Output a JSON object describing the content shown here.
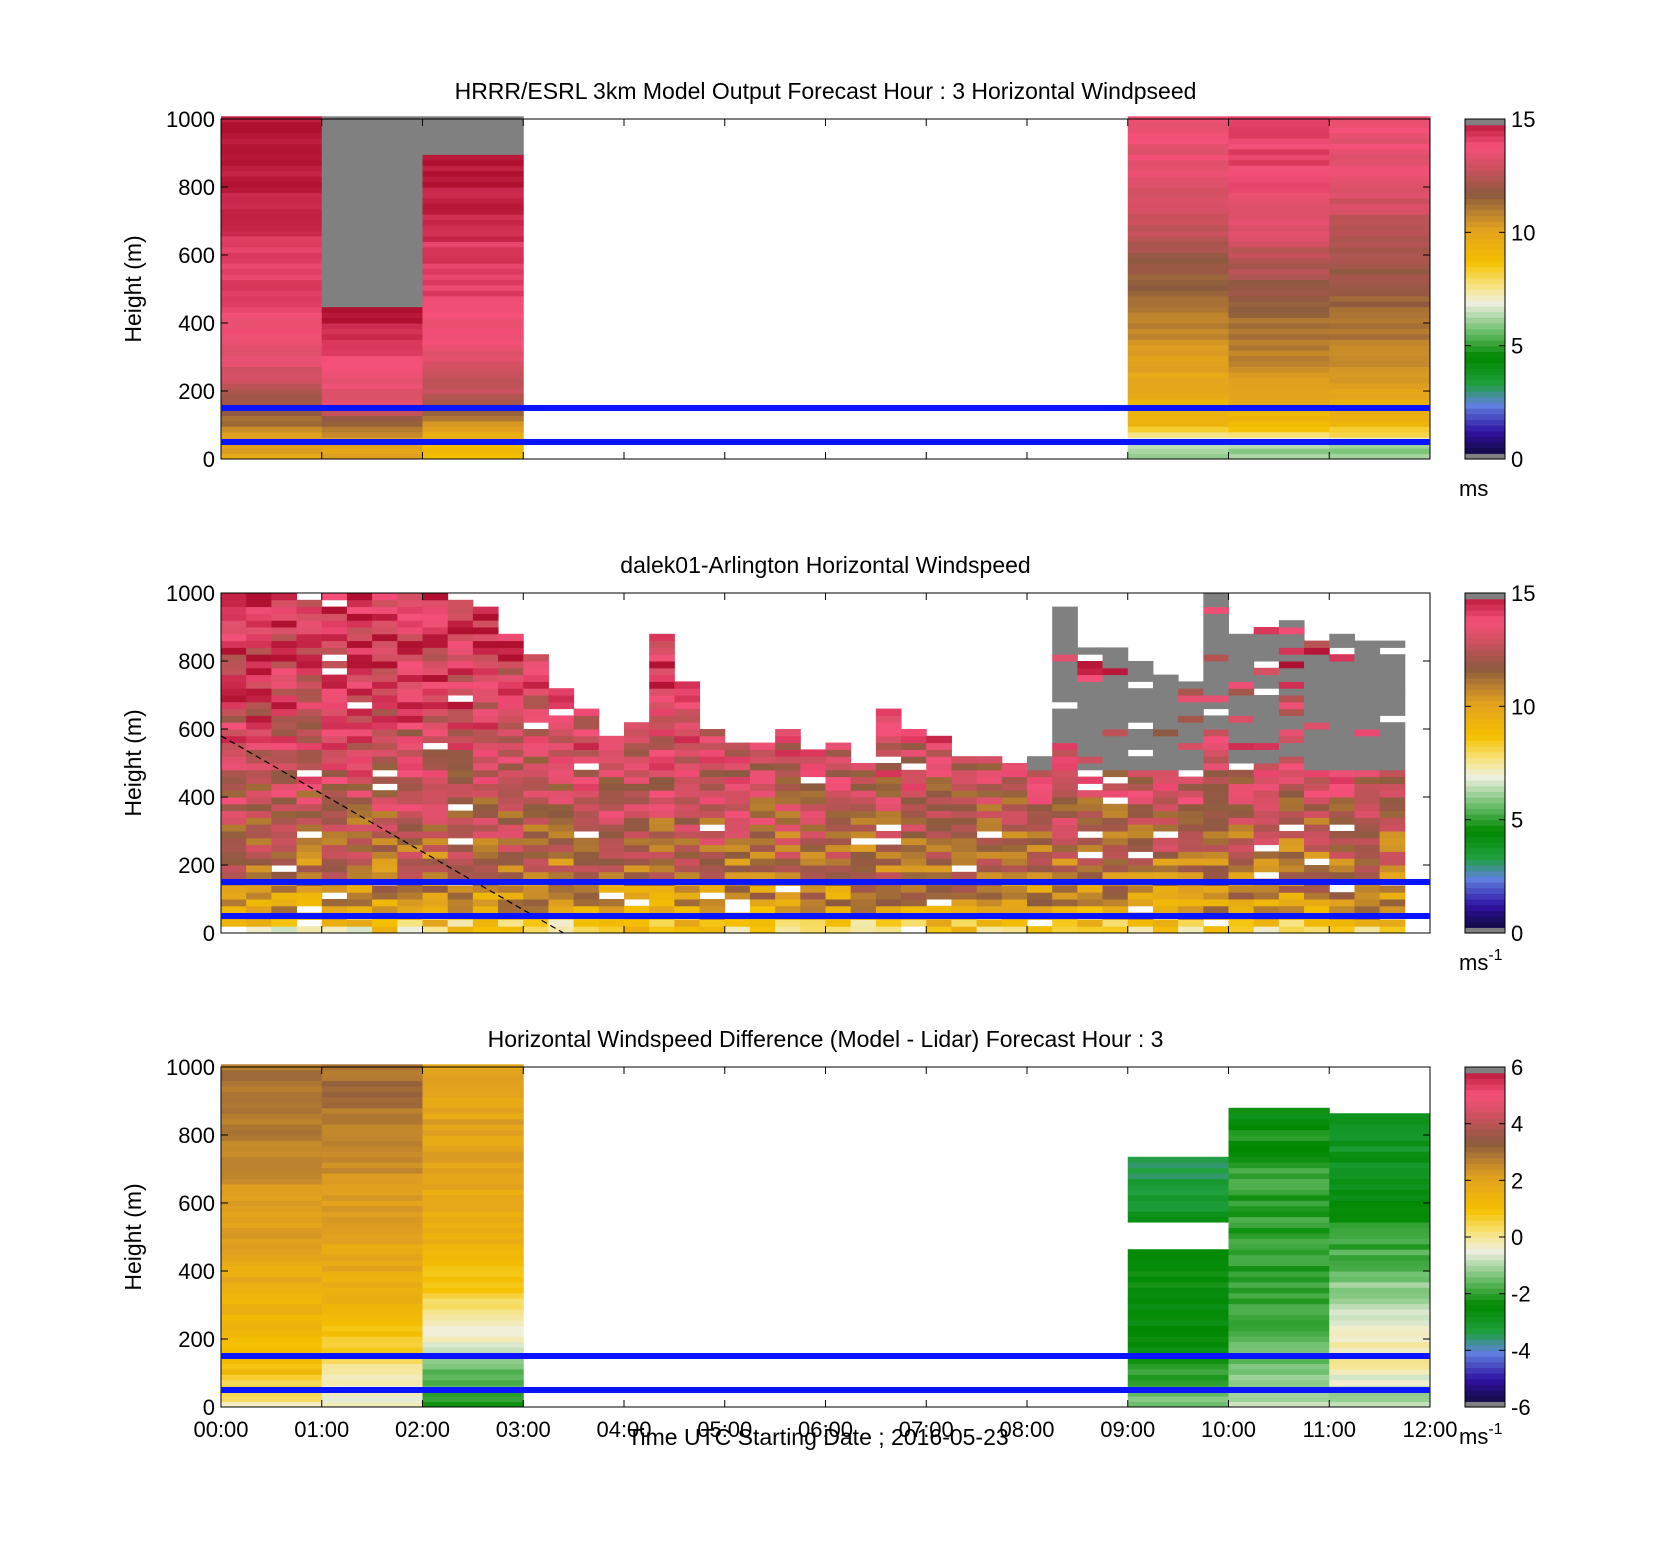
{
  "figure": {
    "xlabel": "Time UTC  Starting Date ; 2016-05-23",
    "xticks": [
      "00:00",
      "01:00",
      "02:00",
      "03:00",
      "04:00",
      "05:00",
      "06:00",
      "07:00",
      "08:00",
      "09:00",
      "10:00",
      "11:00",
      "12:00"
    ]
  },
  "chart_data": [
    {
      "type": "heatmap",
      "title": "HRRR/ESRL 3km Model Output   Forecast Hour : 3 Horizontal Windpseed",
      "ylabel": "Height (m)",
      "xlim": [
        0,
        12
      ],
      "ylim": [
        0,
        1000
      ],
      "yticks": [
        "0",
        "200",
        "400",
        "600",
        "800",
        "1000"
      ],
      "colorbar": {
        "ticks": [
          "0",
          "5",
          "10",
          "15"
        ],
        "range": [
          0,
          15
        ],
        "unit": "ms"
      },
      "reference_lines_m": [
        50,
        150
      ],
      "model_hours_shown": [
        "00:00",
        "01:00",
        "02:00",
        "09:00",
        "10:00",
        "11:00"
      ],
      "representative_columns": [
        {
          "hour": 0,
          "levels_m": [
            50,
            150,
            300,
            500,
            700,
            900
          ],
          "values": [
            10,
            12,
            13.5,
            14,
            14.5,
            15
          ]
        },
        {
          "hour": 1,
          "levels_m": [
            50,
            150,
            300,
            430
          ],
          "values": [
            10,
            13,
            14,
            15
          ],
          "no_data_above_m": 450
        },
        {
          "hour": 2,
          "levels_m": [
            50,
            150,
            300,
            500,
            700,
            850
          ],
          "values": [
            9,
            12,
            13.5,
            14,
            14.5,
            15
          ],
          "no_data_above_m": 900
        },
        {
          "hour": 9,
          "levels_m": [
            30,
            100,
            250,
            450,
            650,
            850
          ],
          "values": [
            6,
            9,
            10,
            11,
            12.5,
            13.5
          ]
        },
        {
          "hour": 10,
          "levels_m": [
            30,
            100,
            250,
            450,
            650,
            850
          ],
          "values": [
            6,
            9,
            10.5,
            11.5,
            13,
            14
          ]
        },
        {
          "hour": 11,
          "levels_m": [
            30,
            100,
            250,
            450,
            650,
            850
          ],
          "values": [
            6,
            9,
            10.5,
            11.5,
            12.5,
            13.5
          ]
        }
      ]
    },
    {
      "type": "heatmap",
      "title": "dalek01-Arlington  Horizontal Windspeed",
      "ylabel": "Height (m)",
      "xlim": [
        0,
        12
      ],
      "ylim": [
        0,
        1000
      ],
      "yticks": [
        "0",
        "200",
        "400",
        "600",
        "800",
        "1000"
      ],
      "colorbar": {
        "ticks": [
          "0",
          "5",
          "10",
          "15"
        ],
        "range": [
          0,
          15
        ],
        "unit": "ms",
        "unit_exponent": "-1"
      },
      "reference_lines_m": [
        50,
        150
      ],
      "dashed_line": {
        "x": [
          0,
          3.4
        ],
        "y": [
          580,
          0
        ]
      },
      "column_width_h": 0.25,
      "profile_top_m": [
        1000,
        1000,
        1000,
        1000,
        1000,
        1000,
        1000,
        1000,
        1000,
        980,
        960,
        900,
        820,
        720,
        650,
        580,
        620,
        880,
        740,
        600,
        560,
        560,
        600,
        540,
        560,
        500,
        660,
        600,
        580,
        520,
        520,
        500,
        520,
        960,
        840,
        840,
        800,
        760,
        740,
        1000,
        880,
        900,
        920,
        860,
        880,
        860,
        860
      ],
      "gray_above_m_from_hour": 8,
      "representative_profile": {
        "levels_m": [
          20,
          60,
          150,
          300,
          500,
          700,
          900
        ],
        "values": [
          8,
          10,
          11,
          12,
          13,
          13.5,
          14
        ]
      }
    },
    {
      "type": "heatmap",
      "title": "Horizontal Windspeed Difference (Model - Lidar) Forecast Hour : 3",
      "ylabel": "Height (m)",
      "xlim": [
        0,
        12
      ],
      "ylim": [
        0,
        1000
      ],
      "yticks": [
        "0",
        "200",
        "400",
        "600",
        "800",
        "1000"
      ],
      "colorbar": {
        "ticks": [
          "-6",
          "-4",
          "-2",
          "0",
          "2",
          "4",
          "6"
        ],
        "range": [
          -6,
          6
        ],
        "unit": "ms",
        "unit_exponent": "-1"
      },
      "reference_lines_m": [
        50,
        150
      ],
      "representative_columns": [
        {
          "hour": 0,
          "levels_m": [
            20,
            100,
            300,
            500,
            700,
            900
          ],
          "values": [
            0,
            1,
            1.5,
            2,
            2.5,
            3
          ]
        },
        {
          "hour": 1,
          "levels_m": [
            20,
            100,
            300,
            500,
            700,
            900
          ],
          "values": [
            -0.5,
            0,
            1.5,
            2,
            2.5,
            3
          ]
        },
        {
          "hour": 2,
          "levels_m": [
            20,
            100,
            200,
            300,
            500,
            700,
            900
          ],
          "values": [
            -2,
            -1.5,
            -0.5,
            0.5,
            1.5,
            2,
            2
          ]
        },
        {
          "hour": 9,
          "levels_m": [
            30,
            150,
            300,
            450,
            600,
            700
          ],
          "values": [
            -1.5,
            -2.5,
            -2.5,
            -2.5,
            -3,
            -3.5
          ],
          "gap_m": [
            460,
            540
          ],
          "top_m": 740
        },
        {
          "hour": 10,
          "levels_m": [
            30,
            150,
            300,
            500,
            700,
            850
          ],
          "values": [
            -1,
            -1.5,
            -2,
            -2,
            -2,
            -2.5
          ],
          "top_m": 880
        },
        {
          "hour": 11,
          "levels_m": [
            30,
            150,
            250,
            400,
            600,
            800
          ],
          "values": [
            -1,
            0,
            -0.5,
            -1.5,
            -2.5,
            -3
          ],
          "top_m": 870
        }
      ]
    }
  ]
}
